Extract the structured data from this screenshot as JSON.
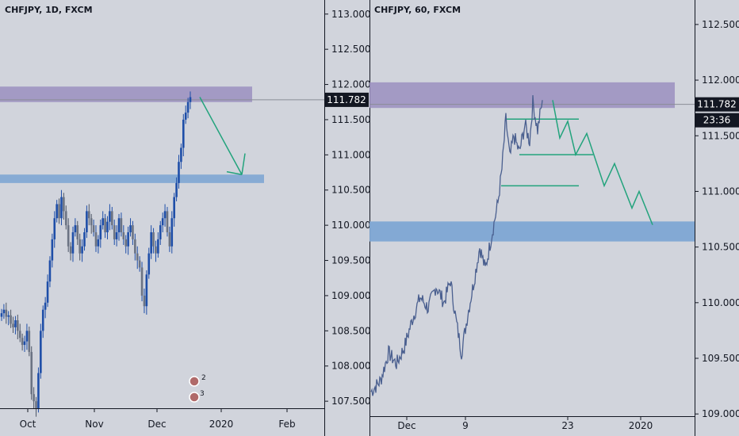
{
  "chart_data": [
    {
      "type": "candlestick",
      "title": "CHFJPY, 1D, FXCM",
      "symbol": "CHFJPY",
      "timeframe": "1D",
      "exchange": "FXCM",
      "y_ticks": [
        "113.000",
        "112.500",
        "112.000",
        "111.500",
        "111.000",
        "110.500",
        "110.000",
        "109.500",
        "109.000",
        "108.500",
        "108.000",
        "107.500"
      ],
      "y_tick_values": [
        113.0,
        112.5,
        112.0,
        111.5,
        111.0,
        110.5,
        110.0,
        109.5,
        109.0,
        108.5,
        108.0,
        107.5
      ],
      "x_ticks": [
        "Oct",
        "Nov",
        "Dec",
        "2020",
        "Feb"
      ],
      "last_price": "111.782",
      "ylim": [
        107.4,
        113.2
      ],
      "resistance_zone": [
        111.75,
        111.97
      ],
      "support_zone": [
        110.6,
        110.72
      ],
      "candle_color": "#1e4ea8",
      "arrow_color": "#22a37c",
      "event_badges": [
        "2",
        "3"
      ]
    },
    {
      "type": "line",
      "title": "CHFJPY, 60, FXCM",
      "symbol": "CHFJPY",
      "timeframe": "60",
      "exchange": "FXCM",
      "y_ticks": [
        "112.500",
        "112.000",
        "111.500",
        "111.000",
        "110.500",
        "110.000",
        "109.500",
        "109.000"
      ],
      "y_tick_values": [
        112.5,
        112.0,
        111.5,
        111.0,
        110.5,
        110.0,
        109.5,
        109.0
      ],
      "x_ticks": [
        "Dec",
        "9",
        "23",
        "2020"
      ],
      "last_price": "111.782",
      "countdown": "23:36",
      "ylim": [
        108.98,
        112.72
      ],
      "resistance_zone": [
        111.75,
        111.98
      ],
      "support_zone": [
        110.55,
        110.73
      ],
      "line_color": "#4a5f8f",
      "projection_color": "#22a37c"
    }
  ]
}
